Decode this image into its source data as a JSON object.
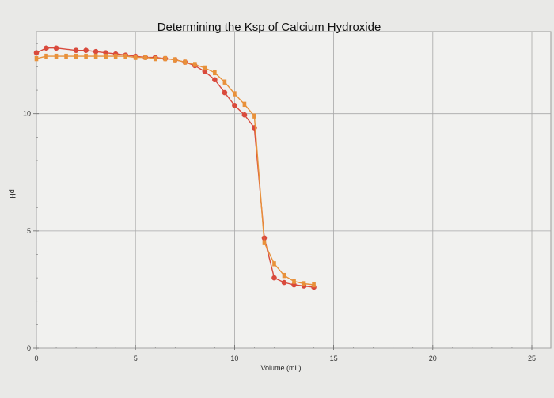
{
  "chart_data": {
    "type": "line",
    "title": "Determining the Ksp of Calcium Hydroxide",
    "xlabel": "Volume (mL)",
    "ylabel": "pH",
    "xlim": [
      0,
      25
    ],
    "ylim": [
      0,
      13.5
    ],
    "x_ticks": [
      "0",
      "5",
      "10",
      "15",
      "20",
      "25"
    ],
    "y_ticks": [
      "0",
      "5",
      "10"
    ],
    "grid": true,
    "series": [
      {
        "color": "#d94a3c",
        "marker": "circle",
        "points": [
          [
            0.0,
            12.6
          ],
          [
            0.5,
            12.8
          ],
          [
            1.0,
            12.8
          ],
          [
            2.0,
            12.7
          ],
          [
            2.5,
            12.7
          ],
          [
            3.0,
            12.65
          ],
          [
            3.5,
            12.6
          ],
          [
            4.0,
            12.55
          ],
          [
            4.5,
            12.5
          ],
          [
            5.0,
            12.45
          ],
          [
            5.5,
            12.4
          ],
          [
            6.0,
            12.4
          ],
          [
            6.5,
            12.35
          ],
          [
            7.0,
            12.3
          ],
          [
            7.5,
            12.2
          ],
          [
            8.0,
            12.05
          ],
          [
            8.5,
            11.8
          ],
          [
            9.0,
            11.45
          ],
          [
            9.5,
            10.9
          ],
          [
            10.0,
            10.35
          ],
          [
            10.5,
            9.95
          ],
          [
            11.0,
            9.4
          ],
          [
            11.5,
            4.7
          ],
          [
            12.0,
            3.0
          ],
          [
            12.5,
            2.8
          ],
          [
            13.0,
            2.7
          ],
          [
            13.5,
            2.65
          ],
          [
            14.0,
            2.6
          ]
        ]
      },
      {
        "color": "#e8913a",
        "marker": "square",
        "points": [
          [
            0.0,
            12.35
          ],
          [
            0.5,
            12.45
          ],
          [
            1.0,
            12.45
          ],
          [
            1.5,
            12.45
          ],
          [
            2.0,
            12.45
          ],
          [
            2.5,
            12.45
          ],
          [
            3.0,
            12.45
          ],
          [
            3.5,
            12.45
          ],
          [
            4.0,
            12.45
          ],
          [
            4.5,
            12.45
          ],
          [
            5.0,
            12.4
          ],
          [
            5.5,
            12.4
          ],
          [
            6.0,
            12.35
          ],
          [
            6.5,
            12.35
          ],
          [
            7.0,
            12.3
          ],
          [
            7.5,
            12.2
          ],
          [
            8.0,
            12.1
          ],
          [
            8.5,
            11.95
          ],
          [
            9.0,
            11.75
          ],
          [
            9.5,
            11.35
          ],
          [
            10.0,
            10.85
          ],
          [
            10.5,
            10.4
          ],
          [
            11.0,
            9.9
          ],
          [
            11.5,
            4.5
          ],
          [
            12.0,
            3.6
          ],
          [
            12.5,
            3.1
          ],
          [
            13.0,
            2.85
          ],
          [
            13.5,
            2.75
          ],
          [
            14.0,
            2.7
          ]
        ]
      }
    ]
  }
}
